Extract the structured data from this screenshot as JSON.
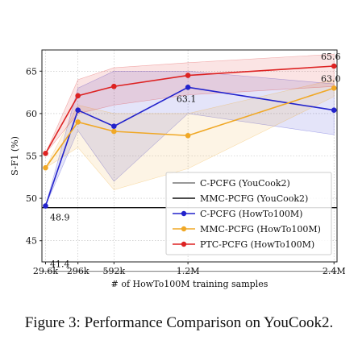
{
  "chart_data": {
    "type": "line",
    "xlabel": "# of HowTo100M training samples",
    "ylabel": "S-F1 (%)",
    "x": [
      29.6,
      296,
      592,
      1200,
      2400
    ],
    "x_tick_labels": [
      "29.6k",
      "296k",
      "592k",
      "1.2M",
      "2.4M"
    ],
    "xlim": [
      0,
      2425
    ],
    "ylim": [
      42.5,
      67.5
    ],
    "y_ticks": [
      45,
      50,
      55,
      60,
      65
    ],
    "grid": true,
    "legend_position": "lower-right",
    "reference_lines": [
      {
        "name": "C-PCFG (YouCook2)",
        "value": 41.4,
        "color": "#777777",
        "label": "41.4"
      },
      {
        "name": "MMC-PCFG (YouCook2)",
        "value": 48.9,
        "color": "#111111",
        "label": "48.9"
      }
    ],
    "series": [
      {
        "name": "C-PCFG (HowTo100M)",
        "color": "#2222cc",
        "values": [
          49.1,
          60.4,
          58.5,
          63.1,
          60.4
        ],
        "band_low": [
          49.1,
          58.0,
          52.0,
          60.0,
          57.5
        ],
        "band_high": [
          49.1,
          63.0,
          65.0,
          65.0,
          63.5
        ]
      },
      {
        "name": "MMC-PCFG (HowTo100M)",
        "color": "#f0a826",
        "values": [
          53.6,
          59.0,
          57.9,
          57.4,
          63.0
        ],
        "band_low": [
          53.6,
          56.0,
          51.0,
          53.5,
          62.0
        ],
        "band_high": [
          53.6,
          61.0,
          60.0,
          60.0,
          64.0
        ]
      },
      {
        "name": "PTC-PCFG (HowTo100M)",
        "color": "#dd2222",
        "values": [
          55.3,
          62.1,
          63.2,
          64.5,
          65.6
        ],
        "band_low": [
          55.3,
          60.0,
          61.0,
          62.2,
          63.2
        ],
        "band_high": [
          55.3,
          64.0,
          65.4,
          66.0,
          67.0
        ]
      }
    ],
    "annotations": [
      {
        "text": "65.6",
        "x": 2400,
        "y": 65.6
      },
      {
        "text": "63.0",
        "x": 2400,
        "y": 63.0
      },
      {
        "text": "63.1",
        "x": 1200,
        "y": 63.1
      }
    ]
  },
  "caption": "Figure 3: Performance Comparison on YouCook2."
}
